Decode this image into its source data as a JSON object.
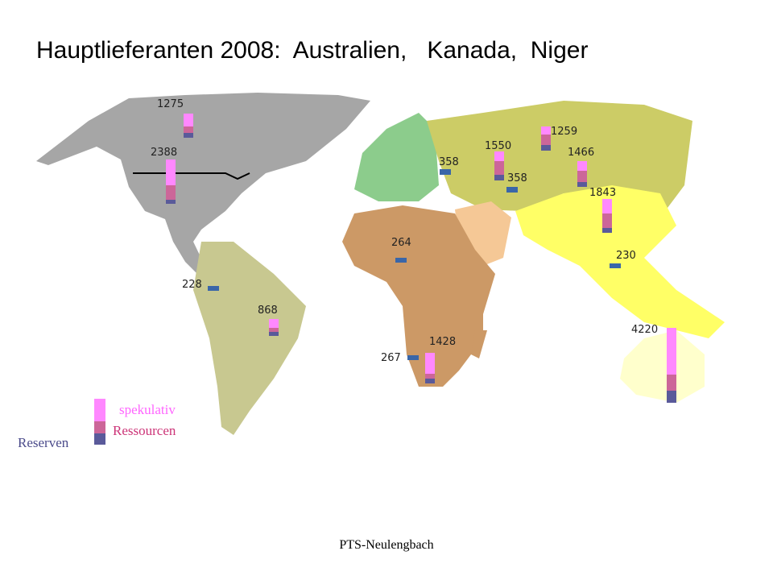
{
  "header": {
    "title": "Hauptlieferanten 2008:  Australien,   Kanada,  Niger"
  },
  "map": {
    "labels": [
      "1275",
      "2388",
      "358",
      "1550",
      "1259",
      "1466",
      "358",
      "1843",
      "264",
      "230",
      "228",
      "868",
      "4220",
      "1428",
      "267"
    ]
  },
  "legend": {
    "items": [
      "spekulativ",
      "Ressourcen",
      "Reserven"
    ]
  },
  "footer": {
    "text": "PTS-Neulengbach"
  }
}
